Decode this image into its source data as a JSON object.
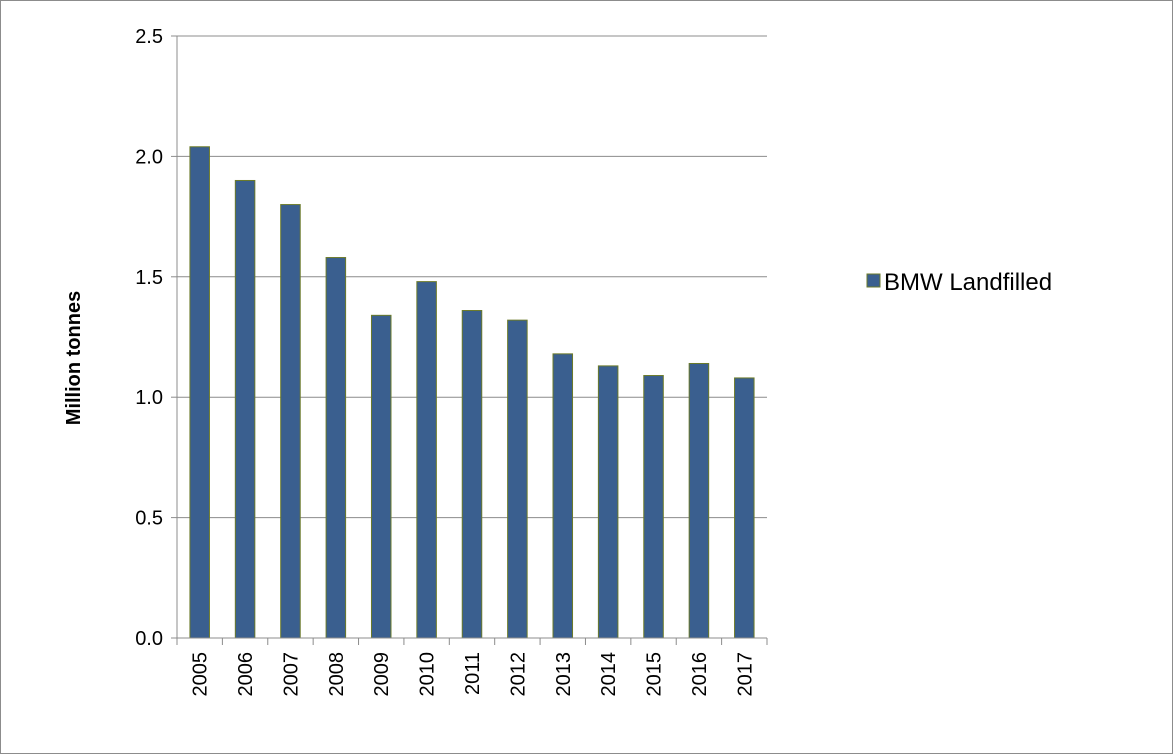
{
  "chart_data": {
    "type": "bar",
    "categories": [
      "2005",
      "2006",
      "2007",
      "2008",
      "2009",
      "2010",
      "2011",
      "2012",
      "2013",
      "2014",
      "2015",
      "2016",
      "2017"
    ],
    "series": [
      {
        "name": "BMW Landfilled",
        "values": [
          2.04,
          1.9,
          1.8,
          1.58,
          1.34,
          1.48,
          1.36,
          1.32,
          1.18,
          1.13,
          1.09,
          1.14,
          1.08
        ],
        "color": "#3a5f8f",
        "edge_color": "#6b7a2a"
      }
    ],
    "ylabel": "Million tonnes",
    "xlabel": "",
    "title": "",
    "ylim": [
      0,
      2.5
    ],
    "yticks": [
      "0.0",
      "0.5",
      "1.0",
      "1.5",
      "2.0",
      "2.5"
    ],
    "grid": true,
    "gridline_color": "#8c8c8c",
    "legend_position": "right"
  }
}
